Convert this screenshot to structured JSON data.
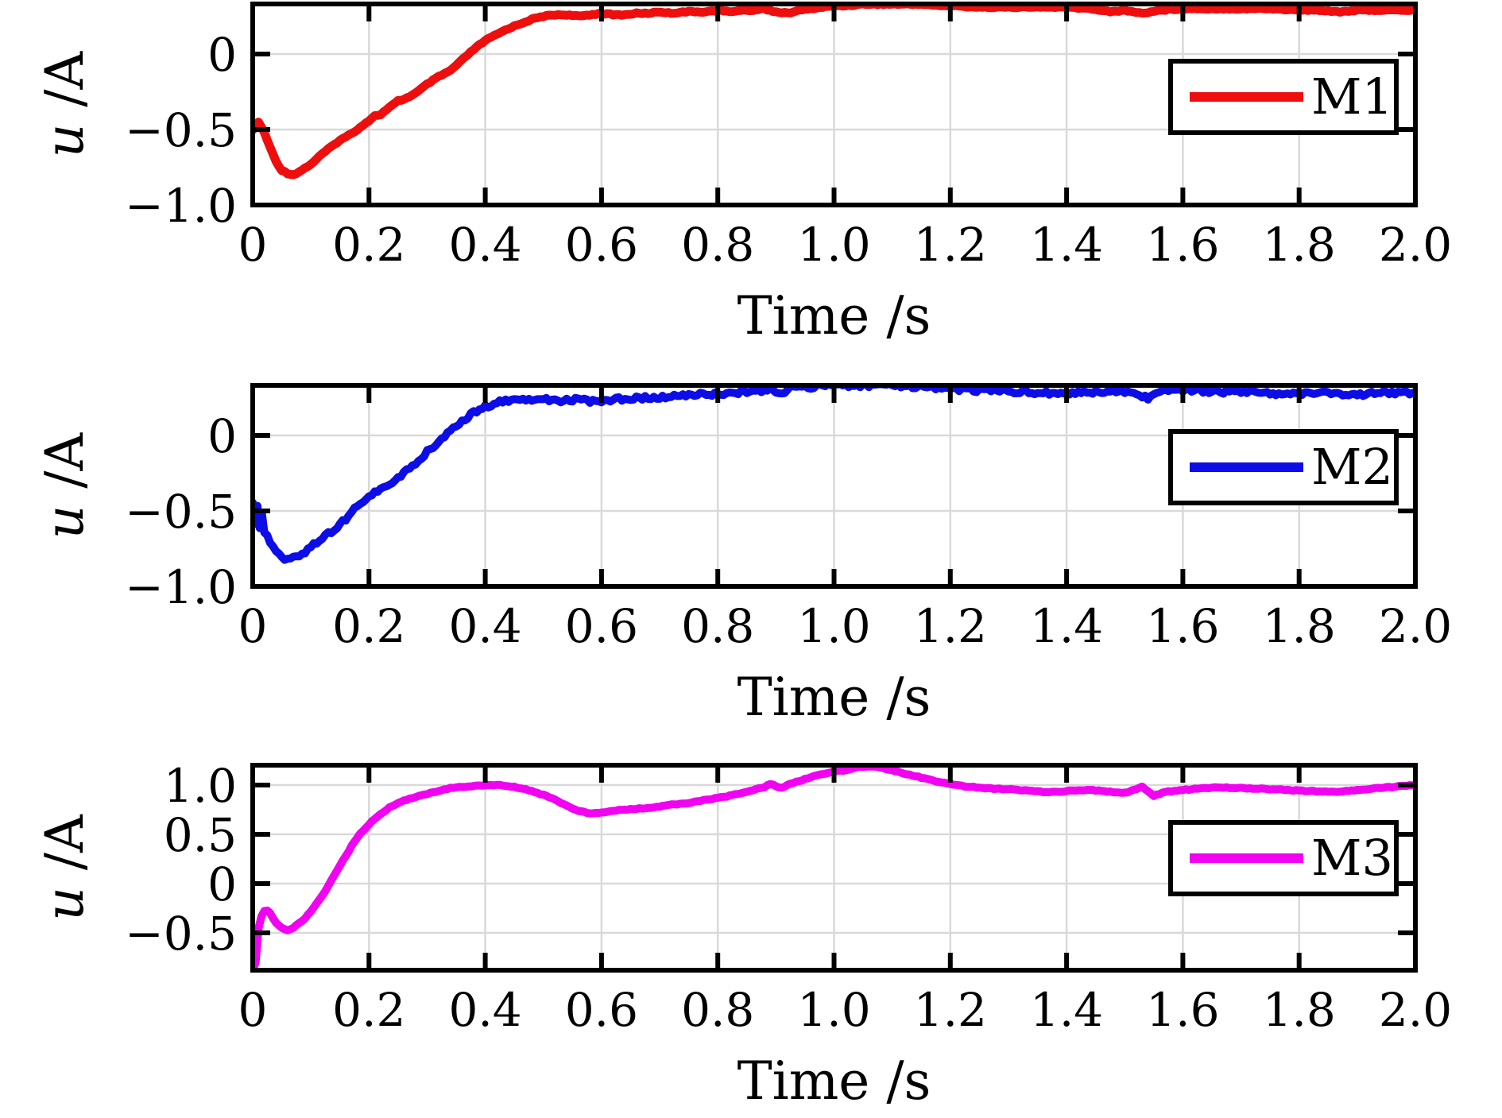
{
  "figure": {
    "background": "#ffffff",
    "grid_color": "#d9d9d9",
    "axis_color": "#000000"
  },
  "chart_data": [
    {
      "type": "line",
      "title": "",
      "xlabel": "Time /s",
      "ylabel": "u /A",
      "xlim": [
        0,
        2.0
      ],
      "ylim": [
        -1.0,
        0.3316
      ],
      "grid": true,
      "xticks": [
        0,
        0.2,
        0.4,
        0.6,
        0.8,
        1.0,
        1.2,
        1.4,
        1.6,
        1.8,
        2.0
      ],
      "xtick_labels": [
        "0",
        "0.2",
        "0.4",
        "0.6",
        "0.8",
        "1.0",
        "1.2",
        "1.4",
        "1.6",
        "1.8",
        "2.0"
      ],
      "yticks": [
        0,
        -0.5,
        -1.0
      ],
      "ytick_labels": [
        "0",
        "−0.5",
        "−1.0"
      ],
      "legend_position": "right",
      "series": [
        {
          "name": "M1",
          "color": "#ee0e0e",
          "line_width": 11,
          "noise": 0.004,
          "x": [
            0,
            0.01,
            0.02,
            0.03,
            0.04,
            0.05,
            0.06,
            0.07,
            0.08,
            0.1,
            0.12,
            0.14,
            0.15,
            0.16,
            0.18,
            0.2,
            0.21,
            0.22,
            0.24,
            0.25,
            0.26,
            0.28,
            0.3,
            0.32,
            0.33,
            0.34,
            0.36,
            0.38,
            0.4,
            0.42,
            0.44,
            0.46,
            0.48,
            0.5,
            0.52,
            0.54,
            0.56,
            0.58,
            0.6,
            0.62,
            0.64,
            0.66,
            0.68,
            0.7,
            0.72,
            0.74,
            0.76,
            0.78,
            0.8,
            0.82,
            0.84,
            0.86,
            0.88,
            0.9,
            0.92,
            0.94,
            0.96,
            0.98,
            1.0,
            1.02,
            1.05,
            1.08,
            1.1,
            1.12,
            1.15,
            1.18,
            1.2,
            1.25,
            1.3,
            1.35,
            1.4,
            1.44,
            1.46,
            1.48,
            1.5,
            1.53,
            1.56,
            1.6,
            1.65,
            1.7,
            1.75,
            1.8,
            1.84,
            1.87,
            1.9,
            1.95,
            2.0
          ],
          "y": [
            -0.5,
            -0.45,
            -0.52,
            -0.62,
            -0.71,
            -0.77,
            -0.79,
            -0.8,
            -0.78,
            -0.73,
            -0.66,
            -0.6,
            -0.57,
            -0.55,
            -0.5,
            -0.44,
            -0.41,
            -0.4,
            -0.34,
            -0.31,
            -0.3,
            -0.26,
            -0.2,
            -0.15,
            -0.13,
            -0.11,
            -0.04,
            0.03,
            0.09,
            0.13,
            0.17,
            0.2,
            0.23,
            0.25,
            0.26,
            0.26,
            0.25,
            0.26,
            0.27,
            0.26,
            0.26,
            0.27,
            0.27,
            0.28,
            0.27,
            0.28,
            0.28,
            0.28,
            0.29,
            0.28,
            0.29,
            0.29,
            0.3,
            0.28,
            0.27,
            0.29,
            0.3,
            0.31,
            0.32,
            0.32,
            0.33,
            0.33,
            0.33,
            0.33,
            0.33,
            0.32,
            0.32,
            0.31,
            0.31,
            0.31,
            0.31,
            0.3,
            0.29,
            0.28,
            0.29,
            0.27,
            0.29,
            0.3,
            0.3,
            0.3,
            0.3,
            0.29,
            0.29,
            0.28,
            0.29,
            0.29,
            0.29
          ]
        }
      ]
    },
    {
      "type": "line",
      "title": "",
      "xlabel": "Time /s",
      "ylabel": "u /A",
      "xlim": [
        0,
        2.0
      ],
      "ylim": [
        -1.0,
        0.3316
      ],
      "grid": true,
      "xticks": [
        0,
        0.2,
        0.4,
        0.6,
        0.8,
        1.0,
        1.2,
        1.4,
        1.6,
        1.8,
        2.0
      ],
      "xtick_labels": [
        "0",
        "0.2",
        "0.4",
        "0.6",
        "0.8",
        "1.0",
        "1.2",
        "1.4",
        "1.6",
        "1.8",
        "2.0"
      ],
      "yticks": [
        0,
        -0.5,
        -1.0
      ],
      "ytick_labels": [
        "0",
        "−0.5",
        "−1.0"
      ],
      "legend_position": "right",
      "series": [
        {
          "name": "M2",
          "color": "#0d0de8",
          "line_width": 10,
          "noise": 0.014,
          "x": [
            0,
            0.004,
            0.008,
            0.012,
            0.016,
            0.02,
            0.03,
            0.04,
            0.05,
            0.06,
            0.07,
            0.08,
            0.1,
            0.12,
            0.14,
            0.16,
            0.18,
            0.2,
            0.21,
            0.22,
            0.24,
            0.26,
            0.28,
            0.3,
            0.32,
            0.34,
            0.36,
            0.38,
            0.4,
            0.42,
            0.44,
            0.46,
            0.48,
            0.5,
            0.52,
            0.54,
            0.56,
            0.58,
            0.6,
            0.62,
            0.64,
            0.66,
            0.68,
            0.7,
            0.72,
            0.74,
            0.76,
            0.78,
            0.8,
            0.82,
            0.84,
            0.86,
            0.88,
            0.895,
            0.91,
            0.92,
            0.94,
            0.96,
            0.98,
            1.0,
            1.02,
            1.04,
            1.06,
            1.08,
            1.1,
            1.12,
            1.14,
            1.16,
            1.18,
            1.2,
            1.24,
            1.28,
            1.32,
            1.36,
            1.4,
            1.44,
            1.48,
            1.52,
            1.54,
            1.56,
            1.58,
            1.62,
            1.66,
            1.7,
            1.74,
            1.78,
            1.82,
            1.86,
            1.9,
            1.94,
            1.98,
            2.0
          ],
          "y": [
            -0.45,
            -0.58,
            -0.48,
            -0.62,
            -0.52,
            -0.63,
            -0.7,
            -0.78,
            -0.81,
            -0.82,
            -0.81,
            -0.8,
            -0.74,
            -0.68,
            -0.62,
            -0.55,
            -0.47,
            -0.4,
            -0.37,
            -0.36,
            -0.31,
            -0.25,
            -0.18,
            -0.11,
            -0.04,
            0.03,
            0.1,
            0.15,
            0.19,
            0.22,
            0.23,
            0.24,
            0.24,
            0.24,
            0.23,
            0.23,
            0.24,
            0.23,
            0.23,
            0.24,
            0.24,
            0.25,
            0.25,
            0.25,
            0.26,
            0.26,
            0.27,
            0.27,
            0.28,
            0.28,
            0.29,
            0.29,
            0.3,
            0.31,
            0.27,
            0.31,
            0.32,
            0.32,
            0.33,
            0.33,
            0.33,
            0.33,
            0.33,
            0.34,
            0.33,
            0.33,
            0.32,
            0.32,
            0.31,
            0.31,
            0.3,
            0.3,
            0.29,
            0.28,
            0.28,
            0.29,
            0.29,
            0.28,
            0.24,
            0.28,
            0.3,
            0.3,
            0.29,
            0.29,
            0.28,
            0.28,
            0.28,
            0.28,
            0.27,
            0.28,
            0.28,
            0.28
          ]
        }
      ]
    },
    {
      "type": "line",
      "title": "",
      "xlabel": "Time /s",
      "ylabel": "u /A",
      "xlim": [
        0,
        2.0
      ],
      "ylim": [
        -0.879,
        1.2016
      ],
      "grid": true,
      "xticks": [
        0,
        0.2,
        0.4,
        0.6,
        0.8,
        1.0,
        1.2,
        1.4,
        1.6,
        1.8,
        2.0
      ],
      "xtick_labels": [
        "0",
        "0.2",
        "0.4",
        "0.6",
        "0.8",
        "1.0",
        "1.2",
        "1.4",
        "1.6",
        "1.8",
        "2.0"
      ],
      "yticks": [
        1.0,
        0.5,
        0,
        -0.5
      ],
      "ytick_labels": [
        "1.0",
        "0.5",
        "0",
        "−0.5"
      ],
      "legend_position": "right",
      "series": [
        {
          "name": "M3",
          "color": "#f102f1",
          "line_width": 10,
          "noise": 0.005,
          "x": [
            0,
            0.005,
            0.01,
            0.015,
            0.02,
            0.025,
            0.03,
            0.04,
            0.05,
            0.06,
            0.07,
            0.08,
            0.09,
            0.1,
            0.11,
            0.12,
            0.13,
            0.14,
            0.15,
            0.16,
            0.17,
            0.18,
            0.19,
            0.2,
            0.21,
            0.22,
            0.24,
            0.26,
            0.28,
            0.3,
            0.32,
            0.34,
            0.36,
            0.38,
            0.4,
            0.42,
            0.44,
            0.46,
            0.48,
            0.5,
            0.52,
            0.54,
            0.56,
            0.58,
            0.6,
            0.62,
            0.64,
            0.66,
            0.68,
            0.7,
            0.72,
            0.74,
            0.76,
            0.78,
            0.8,
            0.82,
            0.84,
            0.86,
            0.88,
            0.89,
            0.91,
            0.92,
            0.94,
            0.96,
            0.98,
            1.0,
            1.02,
            1.04,
            1.06,
            1.08,
            1.1,
            1.12,
            1.14,
            1.16,
            1.18,
            1.2,
            1.22,
            1.24,
            1.26,
            1.28,
            1.3,
            1.32,
            1.34,
            1.36,
            1.38,
            1.4,
            1.42,
            1.44,
            1.46,
            1.48,
            1.5,
            1.52,
            1.53,
            1.55,
            1.57,
            1.6,
            1.62,
            1.64,
            1.66,
            1.68,
            1.7,
            1.74,
            1.78,
            1.82,
            1.86,
            1.9,
            1.94,
            1.98,
            2.0
          ],
          "y": [
            -0.88,
            -0.8,
            -0.45,
            -0.33,
            -0.28,
            -0.27,
            -0.3,
            -0.4,
            -0.45,
            -0.47,
            -0.45,
            -0.4,
            -0.35,
            -0.28,
            -0.2,
            -0.12,
            -0.02,
            0.08,
            0.18,
            0.28,
            0.38,
            0.47,
            0.54,
            0.6,
            0.66,
            0.71,
            0.79,
            0.84,
            0.88,
            0.91,
            0.94,
            0.97,
            0.98,
            0.99,
            1.0,
            1.0,
            0.99,
            0.97,
            0.94,
            0.9,
            0.85,
            0.79,
            0.74,
            0.71,
            0.72,
            0.74,
            0.75,
            0.76,
            0.77,
            0.78,
            0.8,
            0.81,
            0.83,
            0.85,
            0.87,
            0.89,
            0.92,
            0.95,
            0.98,
            1.01,
            0.97,
            1.0,
            1.04,
            1.08,
            1.11,
            1.14,
            1.15,
            1.18,
            1.19,
            1.18,
            1.15,
            1.12,
            1.09,
            1.06,
            1.03,
            1.01,
            0.99,
            0.98,
            0.97,
            0.96,
            0.96,
            0.95,
            0.94,
            0.93,
            0.93,
            0.94,
            0.95,
            0.95,
            0.94,
            0.93,
            0.92,
            0.96,
            0.98,
            0.89,
            0.93,
            0.95,
            0.96,
            0.97,
            0.98,
            0.97,
            0.97,
            0.96,
            0.95,
            0.94,
            0.93,
            0.95,
            0.97,
            0.99,
            1.0
          ]
        }
      ]
    }
  ]
}
